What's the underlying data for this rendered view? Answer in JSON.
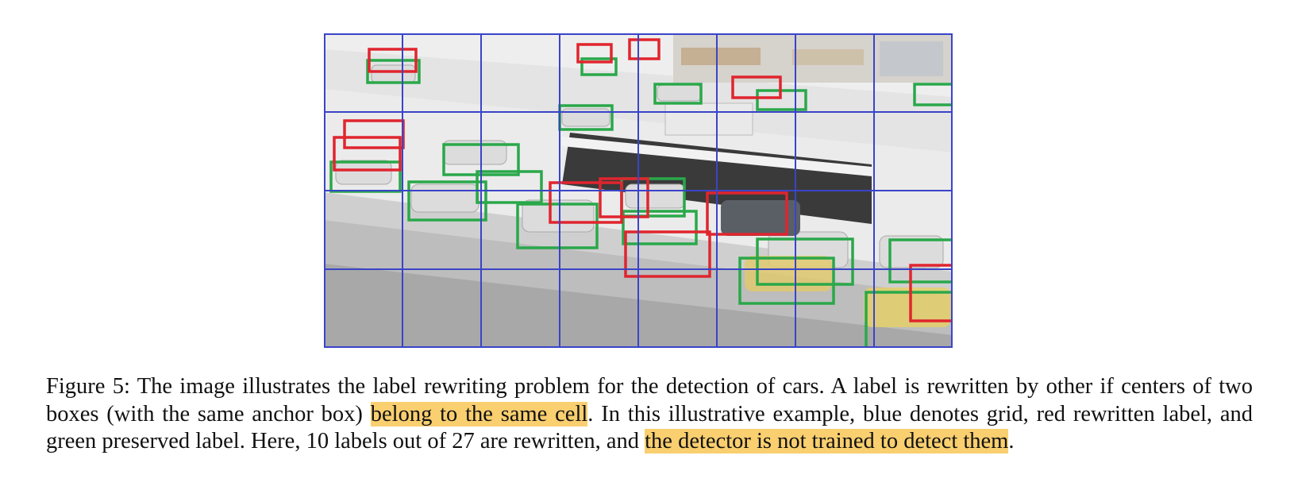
{
  "figure": {
    "label": "Figure 5:",
    "grid_rows": 4,
    "grid_cols": 8,
    "colors": {
      "grid": "#3a44c8",
      "rewritten": "#e0252e",
      "preserved": "#2aa84a",
      "highlight": "#f9cf6f"
    },
    "rewritten_count": 10,
    "total_labels": 27
  },
  "caption": {
    "part1": "The image illustrates the label rewriting problem for the detection of cars. A label is rewritten by other if centers of two boxes (with the same anchor box) ",
    "highlight1": "belong to the same cell",
    "part2": ". In this illustrative example, blue denotes grid, red rewritten label, and green preserved label. Here, 10 labels out of 27 are rewritten, and ",
    "highlight2": "the detector is not trained to detect them",
    "part3": "."
  }
}
